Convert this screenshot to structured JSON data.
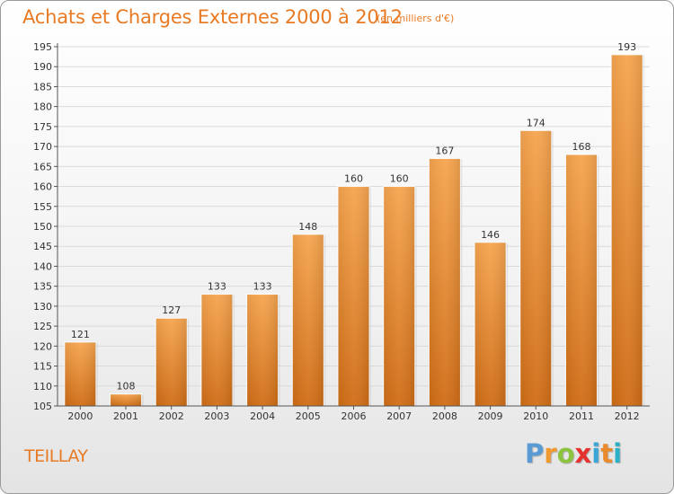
{
  "page": {
    "title": "Achats et Charges Externes 2000 à 2012",
    "subtitle": "(en milliers d'€)",
    "commune": "TEILLAY",
    "logo_letters": [
      "P",
      "r",
      "o",
      "x",
      "i",
      "t",
      "i"
    ]
  },
  "colors": {
    "accent": "#e87a23",
    "bar_light": "#f6a54f",
    "bar_dark": "#d06d16",
    "grid": "#dadada"
  },
  "chart_data": {
    "type": "bar",
    "title": "Achats et Charges Externes 2000 à 2012",
    "subtitle": "(en milliers d'€)",
    "categories": [
      "2000",
      "2001",
      "2002",
      "2003",
      "2004",
      "2005",
      "2006",
      "2007",
      "2008",
      "2009",
      "2010",
      "2011",
      "2012"
    ],
    "values": [
      121,
      108,
      127,
      133,
      133,
      148,
      160,
      160,
      167,
      146,
      174,
      168,
      193
    ],
    "data_labels": [
      "121",
      "108",
      "127",
      "133",
      "133",
      "148",
      "160",
      "160",
      "167",
      "146",
      "174",
      "168",
      "193"
    ],
    "ylim": [
      105,
      195
    ],
    "yticks": [
      105,
      110,
      115,
      120,
      125,
      130,
      135,
      140,
      145,
      150,
      155,
      160,
      165,
      170,
      175,
      180,
      185,
      190,
      195
    ],
    "grid": true,
    "legend": "none"
  }
}
